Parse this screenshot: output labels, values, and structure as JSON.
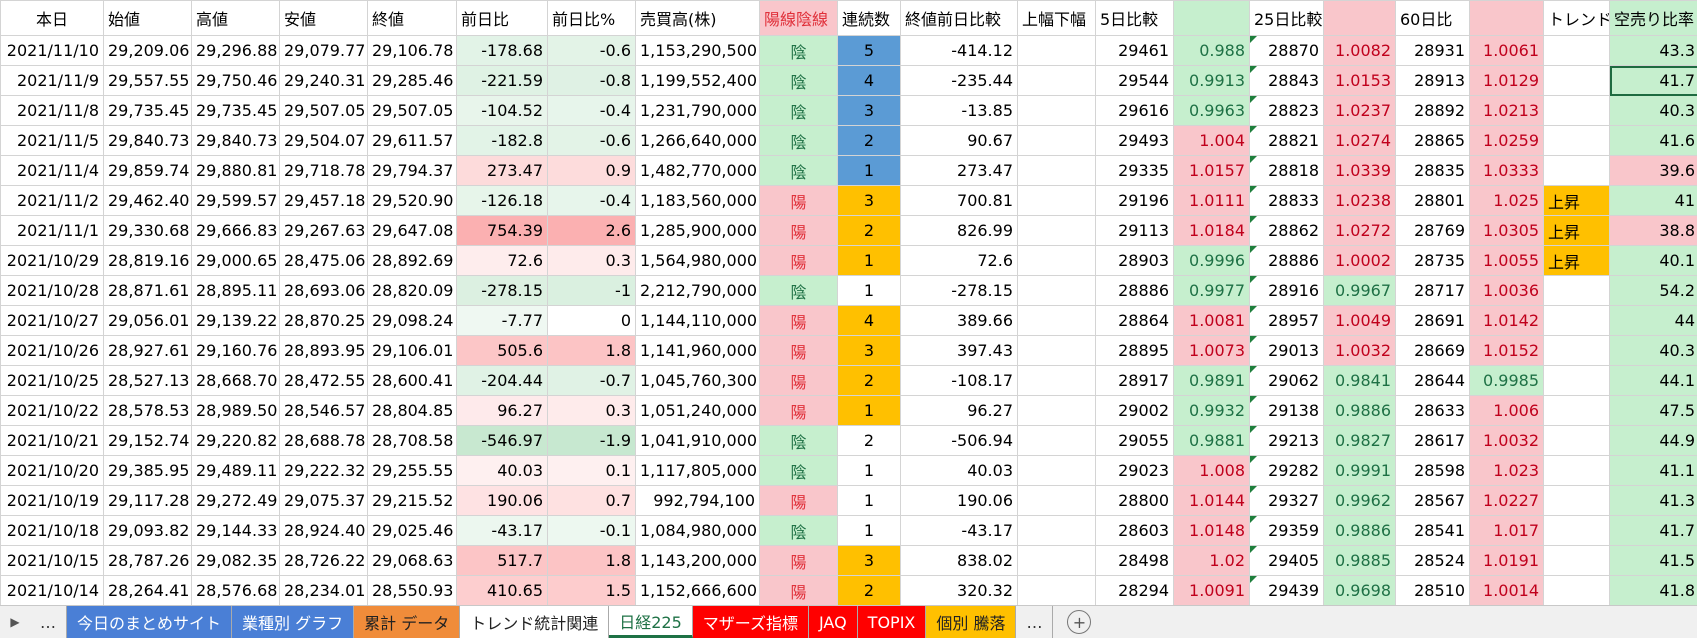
{
  "sheet": {
    "header": [
      "本日",
      "始値",
      "高値",
      "安値",
      "終値",
      "前日比",
      "前日比%",
      "売買高(株)",
      "陽線陰線",
      "連続数",
      "終値前日比較",
      "上幅下幅",
      "5日比較",
      null,
      "25日比較",
      null,
      "60日比",
      null,
      "トレンド",
      "空売り比率"
    ],
    "rows": [
      [
        "2021/11/10",
        "29,209.06",
        "29,296.88",
        "29,079.77",
        "29,106.78",
        "-178.68",
        "-0.6",
        "1,153,290,500",
        "陰",
        "5",
        "-414.12",
        null,
        "29461",
        "0.988",
        "28870",
        "1.0082",
        "28931",
        "1.0061",
        null,
        "43.3"
      ],
      [
        "2021/11/9",
        "29,557.55",
        "29,750.46",
        "29,240.31",
        "29,285.46",
        "-221.59",
        "-0.8",
        "1,199,552,400",
        "陰",
        "4",
        "-235.44",
        null,
        "29544",
        "0.9913",
        "28843",
        "1.0153",
        "28913",
        "1.0129",
        null,
        "41.7"
      ],
      [
        "2021/11/8",
        "29,735.45",
        "29,735.45",
        "29,507.05",
        "29,507.05",
        "-104.52",
        "-0.4",
        "1,231,790,000",
        "陰",
        "3",
        "-13.85",
        null,
        "29616",
        "0.9963",
        "28823",
        "1.0237",
        "28892",
        "1.0213",
        null,
        "40.3"
      ],
      [
        "2021/11/5",
        "29,840.73",
        "29,840.73",
        "29,504.07",
        "29,611.57",
        "-182.8",
        "-0.6",
        "1,266,640,000",
        "陰",
        "2",
        "90.67",
        null,
        "29493",
        "1.004",
        "28821",
        "1.0274",
        "28865",
        "1.0259",
        null,
        "41.6"
      ],
      [
        "2021/11/4",
        "29,859.74",
        "29,880.81",
        "29,718.78",
        "29,794.37",
        "273.47",
        "0.9",
        "1,482,770,000",
        "陰",
        "1",
        "273.47",
        null,
        "29335",
        "1.0157",
        "28818",
        "1.0339",
        "28835",
        "1.0333",
        null,
        "39.6"
      ],
      [
        "2021/11/2",
        "29,462.40",
        "29,599.57",
        "29,457.18",
        "29,520.90",
        "-126.18",
        "-0.4",
        "1,183,560,000",
        "陽",
        "3",
        "700.81",
        null,
        "29196",
        "1.0111",
        "28833",
        "1.0238",
        "28801",
        "1.025",
        "上昇",
        "41"
      ],
      [
        "2021/11/1",
        "29,330.68",
        "29,666.83",
        "29,267.63",
        "29,647.08",
        "754.39",
        "2.6",
        "1,285,900,000",
        "陽",
        "2",
        "826.99",
        null,
        "29113",
        "1.0184",
        "28862",
        "1.0272",
        "28769",
        "1.0305",
        "上昇",
        "38.8"
      ],
      [
        "2021/10/29",
        "28,819.16",
        "29,000.65",
        "28,475.06",
        "28,892.69",
        "72.6",
        "0.3",
        "1,564,980,000",
        "陽",
        "1",
        "72.6",
        null,
        "28903",
        "0.9996",
        "28886",
        "1.0002",
        "28735",
        "1.0055",
        "上昇",
        "40.1"
      ],
      [
        "2021/10/28",
        "28,871.61",
        "28,895.11",
        "28,693.06",
        "28,820.09",
        "-278.15",
        "-1",
        "2,212,790,000",
        "陰",
        "1",
        "-278.15",
        null,
        "28886",
        "0.9977",
        "28916",
        "0.9967",
        "28717",
        "1.0036",
        null,
        "54.2"
      ],
      [
        "2021/10/27",
        "29,056.01",
        "29,139.22",
        "28,870.25",
        "29,098.24",
        "-7.77",
        "0",
        "1,144,110,000",
        "陽",
        "4",
        "389.66",
        null,
        "28864",
        "1.0081",
        "28957",
        "1.0049",
        "28691",
        "1.0142",
        null,
        "44"
      ],
      [
        "2021/10/26",
        "28,927.61",
        "29,160.76",
        "28,893.95",
        "29,106.01",
        "505.6",
        "1.8",
        "1,141,960,000",
        "陽",
        "3",
        "397.43",
        null,
        "28895",
        "1.0073",
        "29013",
        "1.0032",
        "28669",
        "1.0152",
        null,
        "40.3"
      ],
      [
        "2021/10/25",
        "28,527.13",
        "28,668.70",
        "28,472.55",
        "28,600.41",
        "-204.44",
        "-0.7",
        "1,045,760,300",
        "陽",
        "2",
        "-108.17",
        null,
        "28917",
        "0.9891",
        "29062",
        "0.9841",
        "28644",
        "0.9985",
        null,
        "44.1"
      ],
      [
        "2021/10/22",
        "28,578.53",
        "28,989.50",
        "28,546.57",
        "28,804.85",
        "96.27",
        "0.3",
        "1,051,240,000",
        "陽",
        "1",
        "96.27",
        null,
        "29002",
        "0.9932",
        "29138",
        "0.9886",
        "28633",
        "1.006",
        null,
        "47.5"
      ],
      [
        "2021/10/21",
        "29,152.74",
        "29,220.82",
        "28,688.78",
        "28,708.58",
        "-546.97",
        "-1.9",
        "1,041,910,000",
        "陰",
        "2",
        "-506.94",
        null,
        "29055",
        "0.9881",
        "29213",
        "0.9827",
        "28617",
        "1.0032",
        null,
        "44.9"
      ],
      [
        "2021/10/20",
        "29,385.95",
        "29,489.11",
        "29,222.32",
        "29,255.55",
        "40.03",
        "0.1",
        "1,117,805,000",
        "陰",
        "1",
        "40.03",
        null,
        "29023",
        "1.008",
        "29282",
        "0.9991",
        "28598",
        "1.023",
        null,
        "41.1"
      ],
      [
        "2021/10/19",
        "29,117.28",
        "29,272.49",
        "29,075.37",
        "29,215.52",
        "190.06",
        "0.7",
        "992,794,100",
        "陽",
        "1",
        "190.06",
        null,
        "28800",
        "1.0144",
        "29327",
        "0.9962",
        "28567",
        "1.0227",
        null,
        "41.3"
      ],
      [
        "2021/10/18",
        "29,093.82",
        "29,144.33",
        "28,924.40",
        "29,025.46",
        "-43.17",
        "-0.1",
        "1,084,980,000",
        "陰",
        "1",
        "-43.17",
        null,
        "28603",
        "1.0148",
        "29359",
        "0.9886",
        "28541",
        "1.017",
        null,
        "41.7"
      ],
      [
        "2021/10/15",
        "28,787.26",
        "29,082.35",
        "28,726.22",
        "29,068.63",
        "517.7",
        "1.8",
        "1,143,200,000",
        "陽",
        "3",
        "838.02",
        null,
        "28498",
        "1.02",
        "29405",
        "0.9885",
        "28524",
        "1.0191",
        null,
        "41.5"
      ],
      [
        "2021/10/14",
        "28,264.41",
        "28,576.68",
        "28,234.01",
        "28,550.93",
        "410.65",
        "1.5",
        "1,152,666,600",
        "陽",
        "2",
        "320.32",
        null,
        "28294",
        "1.0091",
        "29439",
        "0.9698",
        "28510",
        "1.0014",
        null,
        "41.8"
      ]
    ]
  },
  "tabs": [
    "…",
    "今日のまとめサイト",
    "業種別 グラフ",
    "累計 データ",
    "トレンド統計関連",
    "日経225",
    "マザーズ指標",
    "JAQ",
    "TOPIX",
    "個別 騰落",
    "…"
  ]
}
